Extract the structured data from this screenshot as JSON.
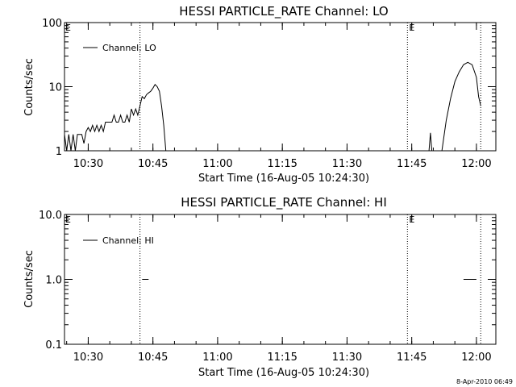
{
  "footer_timestamp": "8-Apr-2010 06:49",
  "chart_data": [
    {
      "type": "line",
      "title": "HESSI PARTICLE_RATE Channel: LO",
      "xlabel": "Start Time (16-Aug-05 10:24:30)",
      "ylabel": "Counts/sec",
      "yscale": "log",
      "ylim": [
        1,
        100
      ],
      "yticks": [
        1,
        10,
        100
      ],
      "ytick_labels": [
        "1",
        "10",
        "100"
      ],
      "xlim_minutes_after_start": [
        0,
        100
      ],
      "xtick_labels": [
        "10:30",
        "10:45",
        "11:00",
        "11:15",
        "11:30",
        "11:45",
        "12:00"
      ],
      "xtick_times": [
        "10:30",
        "10:45",
        "11:00",
        "11:15",
        "11:30",
        "11:45",
        "12:00"
      ],
      "event_lines": [
        {
          "time": "10:42",
          "label": ""
        },
        {
          "time": "11:44",
          "label": "E"
        },
        {
          "time": "12:01",
          "label": ""
        }
      ],
      "corner_label": "E",
      "legend": {
        "label": "Channel: LO",
        "placement": "top-left"
      },
      "series": [
        {
          "name": "Channel: LO",
          "segments": [
            [
              [
                "10:24:30",
                1.8
              ],
              [
                "10:25",
                1.0
              ],
              [
                "10:25:30",
                1.8
              ],
              [
                "10:26",
                1.0
              ],
              [
                "10:26:30",
                1.8
              ],
              [
                "10:27",
                1.0
              ],
              [
                "10:27:30",
                1.8
              ],
              [
                "10:28",
                1.8
              ],
              [
                "10:28:30",
                1.8
              ],
              [
                "10:29",
                1.3
              ],
              [
                "10:29:30",
                2.0
              ],
              [
                "10:30",
                2.3
              ],
              [
                "10:30:30",
                2.0
              ],
              [
                "10:31",
                2.5
              ],
              [
                "10:31:30",
                2.0
              ],
              [
                "10:32",
                2.5
              ],
              [
                "10:32:30",
                2.0
              ],
              [
                "10:33",
                2.5
              ],
              [
                "10:33:30",
                2.0
              ],
              [
                "10:34",
                2.8
              ],
              [
                "10:34:30",
                2.8
              ],
              [
                "10:35",
                2.8
              ],
              [
                "10:35:30",
                2.8
              ],
              [
                "10:36",
                3.6
              ],
              [
                "10:36:30",
                2.8
              ],
              [
                "10:37",
                2.8
              ],
              [
                "10:37:30",
                3.6
              ],
              [
                "10:38",
                2.8
              ],
              [
                "10:38:30",
                2.8
              ],
              [
                "10:39",
                3.6
              ],
              [
                "10:39:30",
                2.8
              ],
              [
                "10:40",
                4.5
              ],
              [
                "10:40:30",
                3.6
              ],
              [
                "10:41",
                4.5
              ],
              [
                "10:41:30",
                3.6
              ],
              [
                "10:42",
                5.0
              ],
              [
                "10:42:30",
                7.0
              ],
              [
                "10:43",
                6.5
              ],
              [
                "10:43:30",
                7.5
              ],
              [
                "10:44",
                8.0
              ],
              [
                "10:44:30",
                8.5
              ],
              [
                "10:45",
                9.5
              ],
              [
                "10:45:30",
                10.8
              ],
              [
                "10:46",
                10.0
              ],
              [
                "10:46:30",
                8.5
              ],
              [
                "10:47",
                5.0
              ],
              [
                "10:47:30",
                2.5
              ],
              [
                "10:48",
                1.0
              ]
            ],
            [
              [
                "11:49",
                1.0
              ],
              [
                "11:49:20",
                1.9
              ],
              [
                "11:49:40",
                1.0
              ]
            ],
            [
              [
                "11:52",
                1.0
              ],
              [
                "11:53",
                3.0
              ],
              [
                "11:54",
                6.5
              ],
              [
                "11:55",
                12.0
              ],
              [
                "11:56",
                17.0
              ],
              [
                "11:57",
                22.0
              ],
              [
                "11:58",
                24.0
              ],
              [
                "11:59",
                22.0
              ],
              [
                "12:00",
                14.0
              ],
              [
                "12:00:30",
                7.0
              ],
              [
                "12:01",
                5.0
              ]
            ]
          ]
        }
      ]
    },
    {
      "type": "line",
      "title": "HESSI PARTICLE_RATE Channel: HI",
      "xlabel": "Start Time (16-Aug-05 10:24:30)",
      "ylabel": "Counts/sec",
      "yscale": "log",
      "ylim": [
        0.1,
        10
      ],
      "yticks": [
        0.1,
        1,
        10
      ],
      "ytick_labels": [
        "0.1",
        "1.0",
        "10.0"
      ],
      "xlim_minutes_after_start": [
        0,
        100
      ],
      "xtick_labels": [
        "10:30",
        "10:45",
        "11:00",
        "11:15",
        "11:30",
        "11:45",
        "12:00"
      ],
      "xtick_times": [
        "10:30",
        "10:45",
        "11:00",
        "11:15",
        "11:30",
        "11:45",
        "12:00"
      ],
      "event_lines": [
        {
          "time": "10:42",
          "label": ""
        },
        {
          "time": "11:44",
          "label": "E"
        },
        {
          "time": "12:01",
          "label": ""
        }
      ],
      "corner_label": "E",
      "legend": {
        "label": "Channel: HI",
        "placement": "top-left"
      },
      "series": [
        {
          "name": "Channel: HI",
          "segments": [
            [
              [
                "10:42:30",
                1.0
              ],
              [
                "10:44",
                1.0
              ]
            ],
            [
              [
                "11:57",
                1.0
              ],
              [
                "12:00",
                1.0
              ]
            ]
          ]
        }
      ]
    }
  ]
}
